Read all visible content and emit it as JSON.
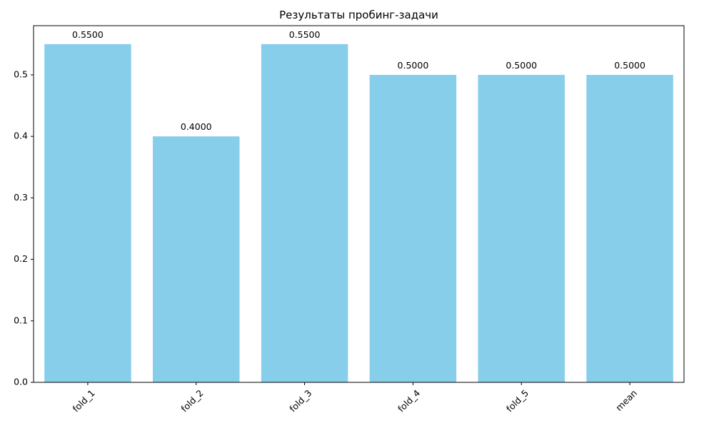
{
  "chart_data": {
    "type": "bar",
    "title": "Результаты пробинг-задачи",
    "xlabel": "",
    "ylabel": "",
    "categories": [
      "fold_1",
      "fold_2",
      "fold_3",
      "fold_4",
      "fold_5",
      "mean"
    ],
    "values": [
      0.55,
      0.4,
      0.55,
      0.5,
      0.5,
      0.5
    ],
    "value_labels": [
      "0.5500",
      "0.4000",
      "0.5500",
      "0.5000",
      "0.5000",
      "0.5000"
    ],
    "y_ticks": [
      0.0,
      0.1,
      0.2,
      0.3,
      0.4,
      0.5
    ],
    "y_tick_labels": [
      "0.0",
      "0.1",
      "0.2",
      "0.3",
      "0.4",
      "0.5"
    ],
    "ylim": [
      0,
      0.58
    ],
    "x_tick_rotation_deg": 45,
    "grid": false,
    "bar_color": "#87ceeb"
  }
}
